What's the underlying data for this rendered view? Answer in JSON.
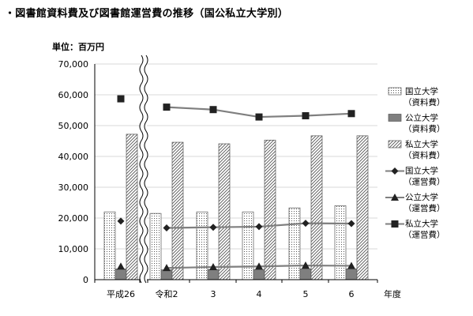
{
  "title": "・図書館資料費及び図書館運営費の推移（国公私立大学別）",
  "unit_label": "単位：百万円",
  "chart_data": {
    "type": "bar",
    "categories": [
      "平成26",
      "令和2",
      "3",
      "4",
      "5",
      "6"
    ],
    "xlabel": "年度",
    "ylim": [
      0,
      70000
    ],
    "yticks": [
      0,
      10000,
      20000,
      30000,
      40000,
      50000,
      60000,
      70000
    ],
    "ytick_labels": [
      "0",
      "10,000",
      "20,000",
      "30,000",
      "40,000",
      "50,000",
      "60,000",
      "70,000"
    ],
    "axis_break_after": "平成26",
    "bar_series": [
      {
        "name": "国立大学（資料費）",
        "legend_lines": [
          "国立大学",
          "（資料費）"
        ],
        "pattern": "dots",
        "values": [
          22000,
          21500,
          22000,
          22000,
          23300,
          24000
        ]
      },
      {
        "name": "公立大学（資料費）",
        "legend_lines": [
          "公立大学",
          "（資料費）"
        ],
        "pattern": "gray",
        "values": [
          3500,
          3200,
          3300,
          3300,
          3500,
          3500
        ]
      },
      {
        "name": "私立大学（資料費）",
        "legend_lines": [
          "私立大学",
          "（資料費）"
        ],
        "pattern": "hatch",
        "values": [
          47200,
          44600,
          44100,
          45300,
          46700,
          46700
        ]
      }
    ],
    "line_series": [
      {
        "name": "国立大学（運営費）",
        "legend_lines": [
          "国立大学",
          "（運営費）"
        ],
        "marker": "diamond",
        "values": [
          19000,
          16800,
          17000,
          17200,
          18300,
          18200
        ]
      },
      {
        "name": "公立大学（運営費）",
        "legend_lines": [
          "公立大学",
          "（運営費）"
        ],
        "marker": "triangle",
        "values": [
          4300,
          3800,
          4100,
          4300,
          4600,
          4500
        ]
      },
      {
        "name": "私立大学（運営費）",
        "legend_lines": [
          "私立大学",
          "（運営費）"
        ],
        "marker": "square",
        "values": [
          58700,
          56000,
          55200,
          52800,
          53200,
          53900
        ]
      }
    ],
    "colors": {
      "line": "#7f7f7f",
      "marker": "#222222",
      "gray_bar": "#7f7f7f",
      "axis": "#000000",
      "grid": "#d9d9d9"
    }
  }
}
